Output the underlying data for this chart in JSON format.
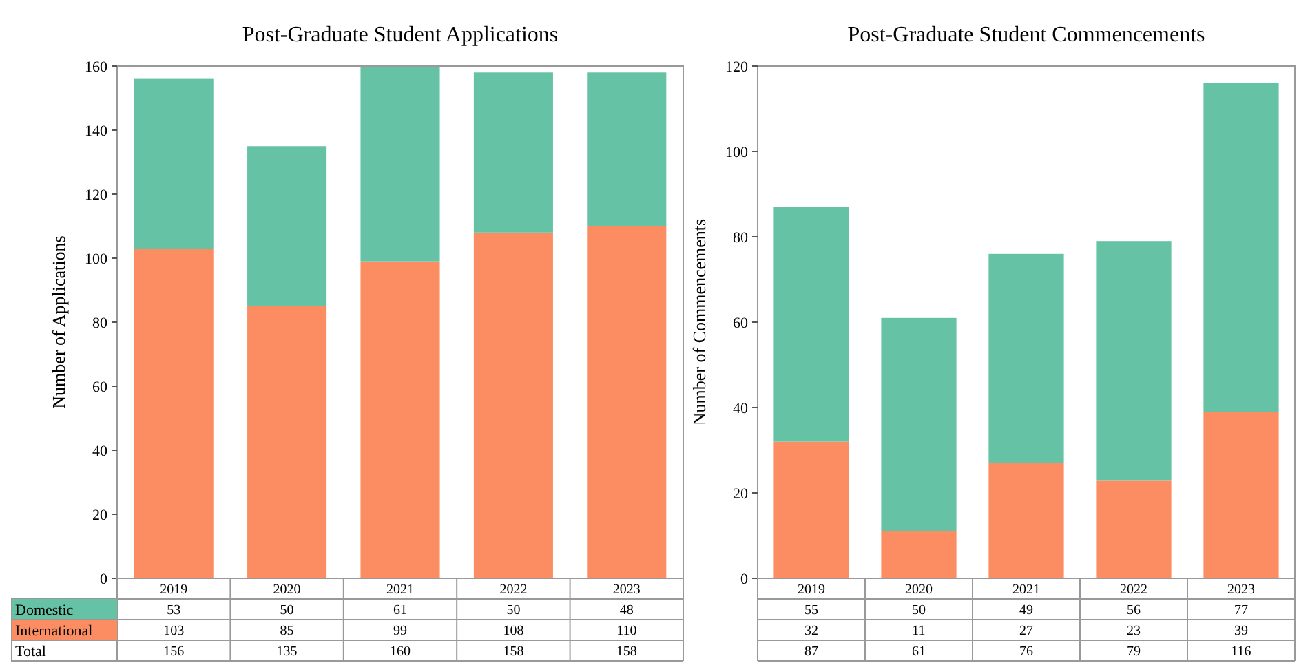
{
  "chart_data": [
    {
      "type": "bar",
      "title": "Post-Graduate Student Applications",
      "ylabel": "Number of Applications",
      "categories": [
        "2019",
        "2020",
        "2021",
        "2022",
        "2023"
      ],
      "stacked": true,
      "series": [
        {
          "name": "International",
          "color": "#fc8d62",
          "values": [
            103,
            85,
            99,
            108,
            110
          ]
        },
        {
          "name": "Domestic",
          "color": "#66c2a5",
          "values": [
            53,
            50,
            61,
            50,
            48
          ]
        }
      ],
      "ylim": [
        0,
        160
      ],
      "yticks": [
        0,
        20,
        40,
        60,
        80,
        100,
        120,
        140,
        160
      ],
      "data_labels": true,
      "annotations": [
        "Total",
        "156",
        "135",
        "160",
        "158",
        "158"
      ],
      "legend": "bottom"
    },
    {
      "type": "bar",
      "title": "Post-Graduate Student Commencements",
      "ylabel": "Number of Commencements",
      "categories": [
        "2019",
        "2020",
        "2021",
        "2022",
        "2023"
      ],
      "stacked": true,
      "series": [
        {
          "color": "#fc8d62",
          "values": [
            32,
            11,
            27,
            23,
            39
          ]
        },
        {
          "color": "#66c2a5",
          "values": [
            55,
            50,
            49,
            56,
            77
          ]
        }
      ],
      "ylim": [
        0,
        120
      ],
      "yticks": [
        0,
        20,
        40,
        60,
        80,
        100,
        120
      ],
      "data_labels": true,
      "annotations": [
        "87",
        "61",
        "76",
        "79",
        "116"
      ]
    }
  ]
}
